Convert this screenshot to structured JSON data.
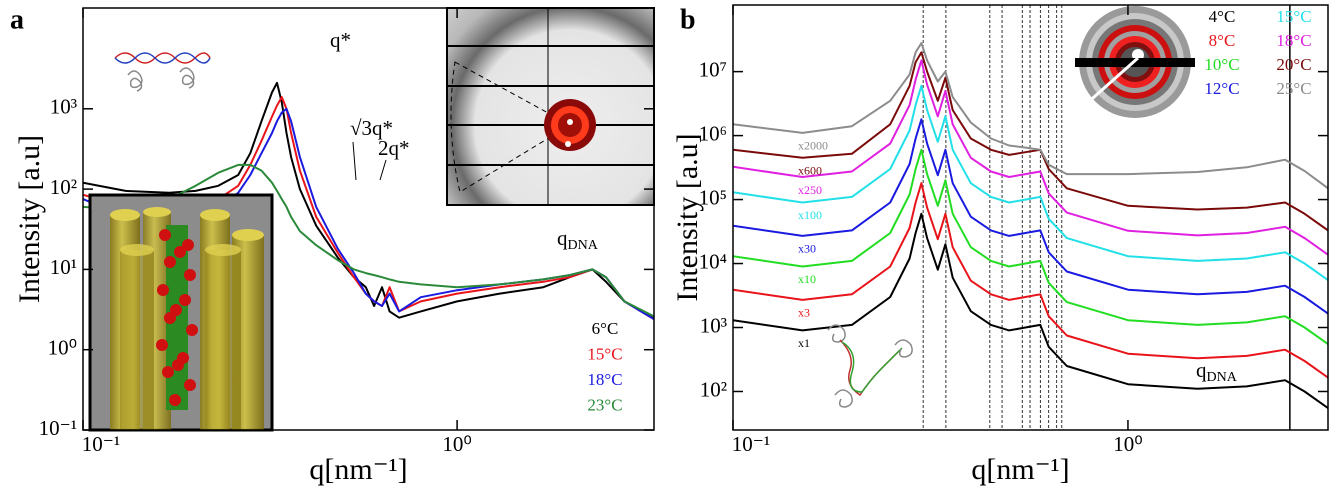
{
  "chart_data": [
    {
      "type": "line",
      "panel_label": "a",
      "xscale": "log",
      "yscale": "log",
      "x_label": "q[nm⁻¹]",
      "y_label": "Intensity [a.u]",
      "xlim": [
        0.1,
        3.36
      ],
      "ylim": [
        0.1,
        18000
      ],
      "xticks": [
        {
          "value": 0.1,
          "label": "10⁻¹"
        },
        {
          "value": 1,
          "label": "10⁰"
        }
      ],
      "yticks": [
        {
          "value": 0.1,
          "label": "10⁻¹"
        },
        {
          "value": 1,
          "label": "10⁰"
        },
        {
          "value": 10,
          "label": "10¹"
        },
        {
          "value": 100,
          "label": "10²"
        },
        {
          "value": 1000,
          "label": "10³"
        }
      ],
      "annotations": [
        {
          "text": "q*"
        },
        {
          "text": "√3q*"
        },
        {
          "text": "2q*"
        },
        {
          "text": "q",
          "sub": "DNA"
        }
      ],
      "x": [
        0.1,
        0.13,
        0.17,
        0.2,
        0.23,
        0.26,
        0.28,
        0.3,
        0.32,
        0.33,
        0.34,
        0.35,
        0.36,
        0.38,
        0.42,
        0.48,
        0.53,
        0.57,
        0.6,
        0.63,
        0.66,
        0.7,
        0.8,
        1.0,
        1.3,
        1.7,
        2.0,
        2.3,
        2.5,
        2.8,
        3.36
      ],
      "series": [
        {
          "name": "6°C",
          "color": "#000000",
          "values": [
            120,
            95,
            90,
            95,
            110,
            150,
            280,
            700,
            1600,
            2100,
            1200,
            500,
            250,
            100,
            35,
            14,
            8,
            6,
            3.5,
            6,
            3,
            2.5,
            3,
            4,
            5,
            6,
            8,
            10,
            7,
            4,
            2.5
          ]
        },
        {
          "name": "15°C",
          "color": "#e8141a",
          "values": [
            85,
            62,
            58,
            62,
            75,
            110,
            200,
            400,
            800,
            1100,
            1400,
            1000,
            500,
            170,
            45,
            16,
            8,
            5,
            4,
            3.5,
            6,
            3,
            4,
            5,
            6,
            7,
            8,
            10,
            8,
            4,
            2.4
          ]
        },
        {
          "name": "18°C",
          "color": "#1a1ae0",
          "values": [
            75,
            45,
            40,
            45,
            60,
            90,
            150,
            280,
            500,
            700,
            900,
            1000,
            700,
            250,
            60,
            18,
            9,
            5,
            4,
            3.5,
            5,
            3,
            4.5,
            5.5,
            6.5,
            7.5,
            8.5,
            10,
            8,
            4,
            2.4
          ]
        },
        {
          "name": "23°C",
          "color": "#2a8a3a",
          "values": [
            60,
            55,
            75,
            110,
            160,
            200,
            200,
            170,
            120,
            95,
            75,
            60,
            45,
            30,
            20,
            13,
            10,
            9,
            8.5,
            8,
            7.5,
            7,
            6.5,
            6,
            6.5,
            7.5,
            8.5,
            10,
            8,
            4,
            2.6
          ]
        }
      ]
    },
    {
      "type": "line",
      "panel_label": "b",
      "xscale": "log",
      "yscale": "log",
      "x_label": "q[nm⁻¹]",
      "y_label": "Intensity [a.u]",
      "xlim": [
        0.1,
        3.21
      ],
      "ylim": [
        25,
        110000000
      ],
      "xticks": [
        {
          "value": 0.1,
          "label": "10⁻¹"
        },
        {
          "value": 1,
          "label": "10⁰"
        }
      ],
      "yticks": [
        {
          "value": 100,
          "label": "10²"
        },
        {
          "value": 1000,
          "label": "10³"
        },
        {
          "value": 10000,
          "label": "10⁴"
        },
        {
          "value": 100000,
          "label": "10⁵"
        },
        {
          "value": 1000000,
          "label": "10⁶"
        },
        {
          "value": 10000000,
          "label": "10⁷"
        }
      ],
      "ref_lines": {
        "dashed": [
          0.303,
          0.346,
          0.447,
          0.48,
          0.54,
          0.565,
          0.6,
          0.63,
          0.66,
          0.68
        ],
        "solid": 2.57
      },
      "annotations": [
        {
          "text": "q",
          "sub": "DNA"
        }
      ],
      "x": [
        0.1,
        0.15,
        0.2,
        0.25,
        0.28,
        0.29,
        0.3,
        0.31,
        0.33,
        0.345,
        0.36,
        0.4,
        0.45,
        0.5,
        0.55,
        0.6,
        0.63,
        0.7,
        1.0,
        1.5,
        2.0,
        2.5,
        2.8,
        3.21
      ],
      "series": [
        {
          "name": "4°C",
          "color": "#000000",
          "scale_label": "x1",
          "values": [
            1300,
            900,
            1100,
            3000,
            12000,
            30000,
            60000,
            25000,
            8000,
            20000,
            6000,
            1800,
            1100,
            900,
            1000,
            1100,
            500,
            250,
            130,
            110,
            120,
            150,
            100,
            55
          ]
        },
        {
          "name": "8°C",
          "color": "#e8141a",
          "scale_label": "x3",
          "values": [
            3900,
            2700,
            3300,
            9000,
            36000,
            90000,
            180000,
            75000,
            24000,
            60000,
            18000,
            5400,
            3300,
            2700,
            3000,
            3300,
            1500,
            750,
            390,
            330,
            360,
            450,
            300,
            165
          ]
        },
        {
          "name": "10°C",
          "color": "#22dd22",
          "scale_label": "x10",
          "values": [
            13000,
            9000,
            11000,
            30000,
            120000,
            300000,
            600000,
            250000,
            80000,
            200000,
            60000,
            18000,
            11000,
            9000,
            10000,
            11000,
            5000,
            2500,
            1300,
            1100,
            1200,
            1500,
            1000,
            550
          ]
        },
        {
          "name": "12°C",
          "color": "#1a1ae0",
          "scale_label": "x30",
          "values": [
            39000,
            27000,
            33000,
            90000,
            360000,
            900000,
            1800000,
            750000,
            240000,
            600000,
            180000,
            54000,
            33000,
            27000,
            30000,
            33000,
            15000,
            7500,
            3900,
            3300,
            3600,
            4500,
            3000,
            1650
          ]
        },
        {
          "name": "15°C",
          "color": "#22e0e8",
          "scale_label": "x100",
          "values": [
            130000,
            90000,
            110000,
            300000,
            1200000,
            3000000,
            6000000,
            2500000,
            800000,
            2000000,
            600000,
            180000,
            110000,
            90000,
            100000,
            110000,
            50000,
            25000,
            13000,
            11000,
            12000,
            15000,
            10000,
            5500
          ]
        },
        {
          "name": "18°C",
          "color": "#e020e0",
          "scale_label": "x250",
          "values": [
            325000,
            225000,
            275000,
            750000,
            3000000,
            7500000,
            15000000,
            6250000,
            2000000,
            5000000,
            1500000,
            450000,
            275000,
            225000,
            250000,
            275000,
            125000,
            62500,
            32500,
            27500,
            30000,
            37500,
            25000,
            13750
          ]
        },
        {
          "name": "20°C",
          "color": "#7a0a0a",
          "scale_label": "x600",
          "values": [
            600000,
            450000,
            520000,
            1500000,
            6000000,
            14000000,
            20000000,
            10000000,
            3500000,
            8000000,
            2500000,
            900000,
            600000,
            500000,
            550000,
            600000,
            300000,
            150000,
            80000,
            70000,
            75000,
            90000,
            60000,
            33000
          ]
        },
        {
          "name": "25°C",
          "color": "#8c8c8c",
          "scale_label": "x2000",
          "values": [
            1500000,
            1100000,
            1400000,
            3500000,
            9000000,
            20000000,
            28000000,
            15000000,
            7000000,
            10000000,
            4000000,
            1600000,
            900000,
            700000,
            650000,
            600000,
            350000,
            250000,
            250000,
            270000,
            320000,
            420000,
            280000,
            150000
          ]
        }
      ]
    }
  ]
}
